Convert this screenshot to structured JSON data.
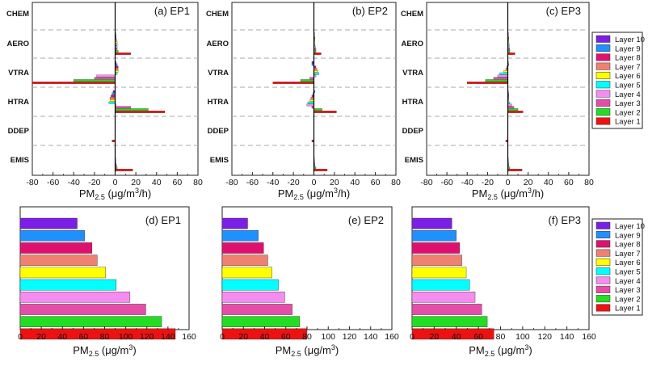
{
  "layers": [
    "Layer 10",
    "Layer 9",
    "Layer 8",
    "Layer 7",
    "Layer 6",
    "Layer 5",
    "Layer 4",
    "Layer 3",
    "Layer 2",
    "Layer 1"
  ],
  "colors": [
    "#7b1fe6",
    "#1e90ff",
    "#e0106f",
    "#f08070",
    "#ffff00",
    "#00ffff",
    "#f58cf0",
    "#e54ea8",
    "#22dd22",
    "#ee1111"
  ],
  "top_axis_label": {
    "pre": "PM",
    "sub": "2.5",
    "post": " (μg/m",
    "sup": "3",
    "post2": "/h)"
  },
  "bottom_axis_label": {
    "pre": "PM",
    "sub": "2.5",
    "post": " (μg/m",
    "sup": "3",
    "post2": ")"
  },
  "chart_data": [
    {
      "type": "bar",
      "orientation": "horizontal",
      "title": "(a) EP1",
      "categories": [
        "CHEM",
        "AERO",
        "VTRA",
        "HTRA",
        "DDEP",
        "EMIS"
      ],
      "xlim": [
        -80,
        80
      ],
      "xticks": [
        -80,
        -60,
        -40,
        -20,
        0,
        20,
        40,
        60,
        80
      ],
      "series": [
        {
          "name": "Layer 10",
          "values": [
            0,
            0.5,
            1,
            -2,
            0,
            0
          ]
        },
        {
          "name": "Layer 9",
          "values": [
            0,
            1,
            2,
            -3,
            0,
            0
          ]
        },
        {
          "name": "Layer 8",
          "values": [
            0,
            1,
            3,
            -4,
            0,
            0
          ]
        },
        {
          "name": "Layer 7",
          "values": [
            0,
            1.5,
            3,
            -5,
            0,
            0
          ]
        },
        {
          "name": "Layer 6",
          "values": [
            0,
            2,
            3,
            -5,
            0,
            0.5
          ]
        },
        {
          "name": "Layer 5",
          "values": [
            0,
            2,
            2,
            -6,
            0,
            0.5
          ]
        },
        {
          "name": "Layer 4",
          "values": [
            0,
            2,
            -18,
            1,
            0,
            1
          ]
        },
        {
          "name": "Layer 3",
          "values": [
            0,
            2,
            -20,
            15,
            0,
            1.5
          ]
        },
        {
          "name": "Layer 2",
          "values": [
            0,
            3,
            -40,
            32,
            0,
            2
          ]
        },
        {
          "name": "Layer 1",
          "values": [
            0,
            15,
            -80,
            48,
            -3,
            17
          ]
        }
      ]
    },
    {
      "type": "bar",
      "orientation": "horizontal",
      "title": "(b) EP2",
      "categories": [
        "CHEM",
        "AERO",
        "VTRA",
        "HTRA",
        "DDEP",
        "EMIS"
      ],
      "xlim": [
        -80,
        80
      ],
      "xticks": [
        -80,
        -60,
        -40,
        -20,
        0,
        20,
        40,
        60,
        80
      ],
      "series": [
        {
          "name": "Layer 10",
          "values": [
            0,
            0.5,
            -2,
            1,
            0,
            0
          ]
        },
        {
          "name": "Layer 9",
          "values": [
            0,
            0.5,
            -2,
            -1,
            0,
            0
          ]
        },
        {
          "name": "Layer 8",
          "values": [
            0,
            1,
            2,
            -2,
            0,
            0
          ]
        },
        {
          "name": "Layer 7",
          "values": [
            0,
            1,
            3,
            -3,
            0,
            0
          ]
        },
        {
          "name": "Layer 6",
          "values": [
            0,
            1,
            4,
            -4,
            0,
            0.5
          ]
        },
        {
          "name": "Layer 5",
          "values": [
            0,
            1,
            5,
            -6,
            0,
            0.5
          ]
        },
        {
          "name": "Layer 4",
          "values": [
            0,
            1.5,
            2,
            -7,
            0,
            1
          ]
        },
        {
          "name": "Layer 3",
          "values": [
            0,
            2,
            -4,
            -2,
            0,
            1
          ]
        },
        {
          "name": "Layer 2",
          "values": [
            0,
            2,
            -13,
            8,
            0,
            2
          ]
        },
        {
          "name": "Layer 1",
          "values": [
            0,
            7,
            -40,
            22,
            -2,
            13
          ]
        }
      ]
    },
    {
      "type": "bar",
      "orientation": "horizontal",
      "title": "(c) EP3",
      "categories": [
        "CHEM",
        "AERO",
        "VTRA",
        "HTRA",
        "DDEP",
        "EMIS"
      ],
      "xlim": [
        -80,
        80
      ],
      "xticks": [
        -80,
        -60,
        -40,
        -20,
        0,
        20,
        40,
        60,
        80
      ],
      "series": [
        {
          "name": "Layer 10",
          "values": [
            0,
            0.5,
            0.5,
            0.5,
            0,
            0
          ]
        },
        {
          "name": "Layer 9",
          "values": [
            0,
            0.5,
            1,
            1,
            0,
            0
          ]
        },
        {
          "name": "Layer 8",
          "values": [
            0,
            1,
            -1,
            1,
            0,
            0
          ]
        },
        {
          "name": "Layer 7",
          "values": [
            0,
            1,
            -2,
            1,
            0,
            0
          ]
        },
        {
          "name": "Layer 6",
          "values": [
            0,
            1,
            -4,
            1,
            0,
            0.5
          ]
        },
        {
          "name": "Layer 5",
          "values": [
            0,
            1.5,
            -8,
            2,
            0,
            0.5
          ]
        },
        {
          "name": "Layer 4",
          "values": [
            0,
            1.5,
            -10,
            4,
            0,
            1
          ]
        },
        {
          "name": "Layer 3",
          "values": [
            0,
            2,
            -14,
            6,
            0,
            1
          ]
        },
        {
          "name": "Layer 2",
          "values": [
            0,
            2,
            -22,
            10,
            0,
            2
          ]
        },
        {
          "name": "Layer 1",
          "values": [
            0,
            7,
            -40,
            15,
            -2,
            14
          ]
        }
      ]
    },
    {
      "type": "bar",
      "orientation": "horizontal",
      "title": "(d) EP1",
      "categories": [
        "Layer 10",
        "Layer 9",
        "Layer 8",
        "Layer 7",
        "Layer 6",
        "Layer 5",
        "Layer 4",
        "Layer 3",
        "Layer 2",
        "Layer 1"
      ],
      "values": [
        54,
        61,
        68,
        73,
        81,
        91,
        104,
        119,
        134,
        147
      ],
      "xlim": [
        0,
        160
      ],
      "xticks": [
        0,
        20,
        40,
        60,
        80,
        100,
        120,
        140,
        160
      ]
    },
    {
      "type": "bar",
      "orientation": "horizontal",
      "title": "(e) EP2",
      "categories": [
        "Layer 10",
        "Layer 9",
        "Layer 8",
        "Layer 7",
        "Layer 6",
        "Layer 5",
        "Layer 4",
        "Layer 3",
        "Layer 2",
        "Layer 1"
      ],
      "values": [
        24,
        34,
        39,
        43,
        47,
        53,
        59,
        66,
        73,
        80
      ],
      "xlim": [
        0,
        160
      ],
      "xticks": [
        0,
        20,
        40,
        60,
        80,
        100,
        120,
        140,
        160
      ]
    },
    {
      "type": "bar",
      "orientation": "horizontal",
      "title": "(f) EP3",
      "categories": [
        "Layer 10",
        "Layer 9",
        "Layer 8",
        "Layer 7",
        "Layer 6",
        "Layer 5",
        "Layer 4",
        "Layer 3",
        "Layer 2",
        "Layer 1"
      ],
      "values": [
        36,
        40,
        43,
        45,
        49,
        52,
        57,
        63,
        68,
        74
      ],
      "xlim": [
        0,
        160
      ],
      "xticks": [
        0,
        20,
        40,
        60,
        80,
        100,
        120,
        140,
        160
      ]
    }
  ]
}
